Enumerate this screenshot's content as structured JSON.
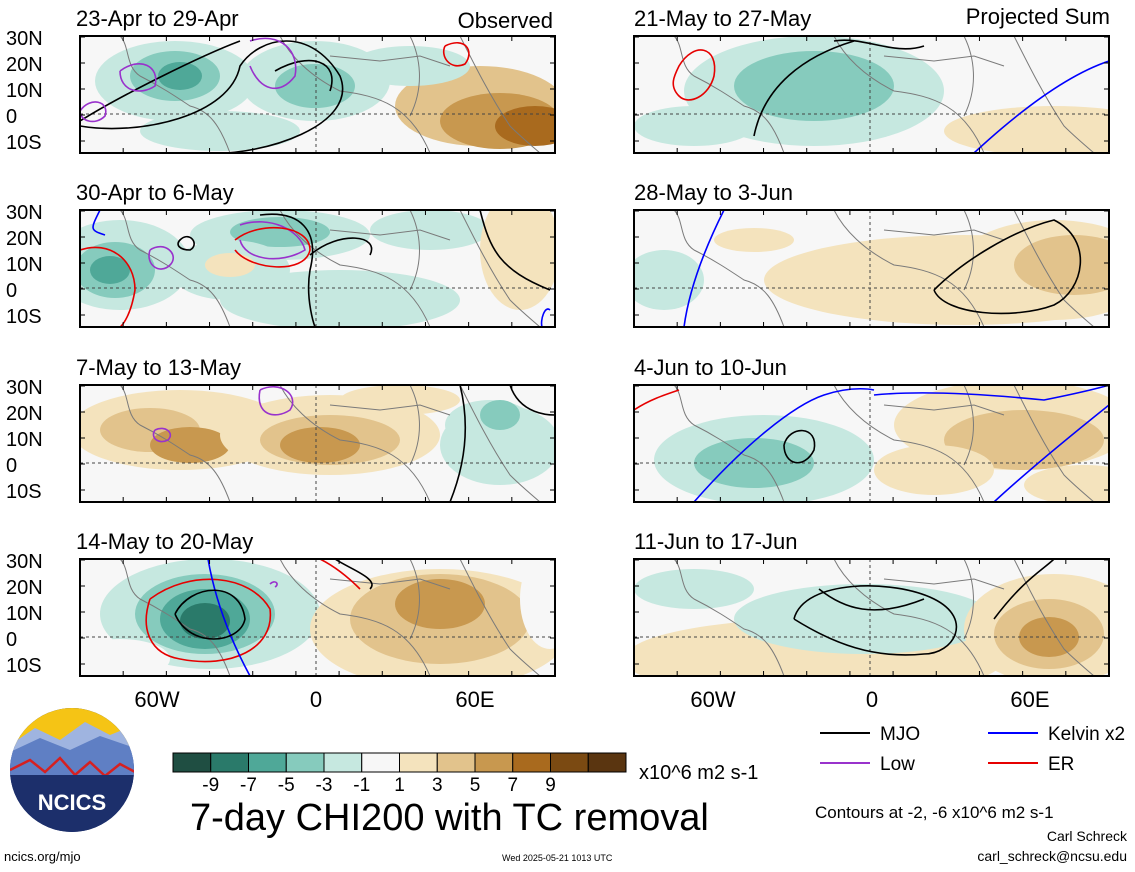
{
  "labels": {
    "observed": "Observed",
    "projected": "Projected Sum"
  },
  "left_panels": [
    {
      "title": "23-Apr to 29-Apr"
    },
    {
      "title": "30-Apr to 6-May"
    },
    {
      "title": "7-May to 13-May"
    },
    {
      "title": "14-May to 20-May"
    }
  ],
  "right_panels": [
    {
      "title": "21-May to 27-May"
    },
    {
      "title": "28-May to 3-Jun"
    },
    {
      "title": "4-Jun to 10-Jun"
    },
    {
      "title": "11-Jun to 17-Jun"
    }
  ],
  "lat_ticks": [
    "30N",
    "20N",
    "10N",
    "0",
    "10S"
  ],
  "lon_ticks": [
    "60W",
    "0",
    "60E"
  ],
  "colorbar": {
    "colors": [
      "#1f4e42",
      "#2a7a6a",
      "#4fa898",
      "#86cbbd",
      "#c6e8e0",
      "#f7f7f7",
      "#f4e3bd",
      "#e2c38c",
      "#c8984f",
      "#a96a1e",
      "#7b4a12",
      "#5a3510"
    ],
    "ticks": [
      "-9",
      "-7",
      "-5",
      "-3",
      "-1",
      "1",
      "3",
      "5",
      "7",
      "9"
    ],
    "units": "x10^6 m2 s-1"
  },
  "map_colors": {
    "mjo": "#000000",
    "low": "#9932cc",
    "kelvin": "#0000ff",
    "er": "#e60000"
  },
  "legend": [
    {
      "label": "MJO",
      "color": "#000000"
    },
    {
      "label": "Kelvin x2",
      "color": "#0000ff"
    },
    {
      "label": "Low",
      "color": "#9932cc"
    },
    {
      "label": "ER",
      "color": "#e60000"
    }
  ],
  "main_title": "7-day CHI200 with TC removal",
  "contours_note": "Contours at -2, -6 x10^6 m2 s-1",
  "author": "Carl Schreck",
  "email": "carl_schreck@ncsu.edu",
  "site": "ncics.org/mjo",
  "timestamp": "Wed 2025-05-21 1013 UTC",
  "logo_text": "NCICS"
}
